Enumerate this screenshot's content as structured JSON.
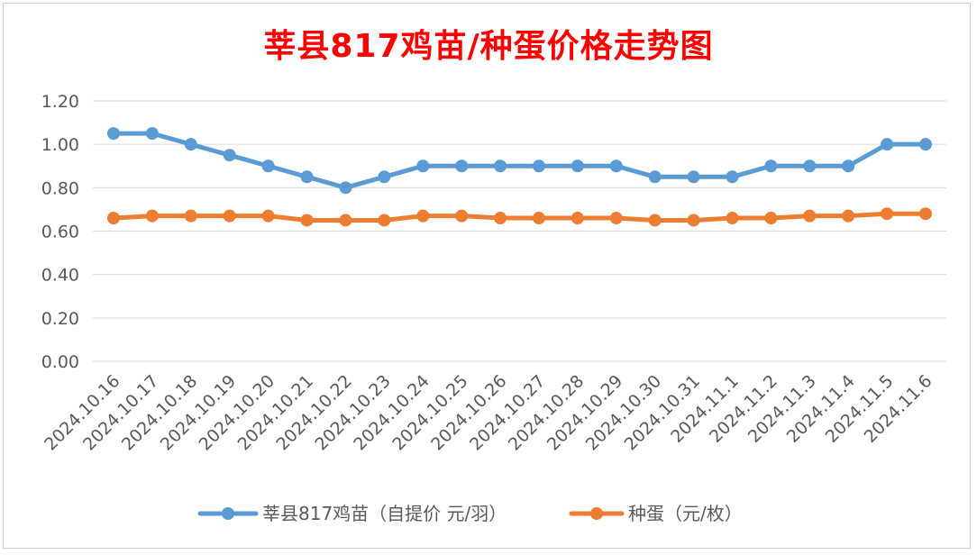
{
  "chart_data": {
    "type": "line",
    "title": "莘县817鸡苗/种蛋价格走势图",
    "title_color": "#ff0000",
    "xlabel": "",
    "ylabel": "",
    "ylim": [
      0,
      1.2
    ],
    "yticks": [
      "0.00",
      "0.20",
      "0.40",
      "0.60",
      "0.80",
      "1.00",
      "1.20"
    ],
    "grid": true,
    "legend_position": "bottom",
    "categories": [
      "2024.10.16",
      "2024.10.17",
      "2024.10.18",
      "2024.10.19",
      "2024.10.20",
      "2024.10.21",
      "2024.10.22",
      "2024.10.23",
      "2024.10.24",
      "2024.10.25",
      "2024.10.26",
      "2024.10.27",
      "2024.10.28",
      "2024.10.29",
      "2024.10.30",
      "2024.10.31",
      "2024.11.1",
      "2024.11.2",
      "2024.11.3",
      "2024.11.4",
      "2024.11.5",
      "2024.11.6"
    ],
    "series": [
      {
        "name": "莘县817鸡苗（自提价 元/羽）",
        "color": "#5b9bd5",
        "values": [
          1.05,
          1.05,
          1.0,
          0.95,
          0.9,
          0.85,
          0.8,
          0.85,
          0.9,
          0.9,
          0.9,
          0.9,
          0.9,
          0.9,
          0.85,
          0.85,
          0.85,
          0.9,
          0.9,
          0.9,
          1.0,
          1.0
        ]
      },
      {
        "name": "种蛋（元/枚）",
        "color": "#ed7d31",
        "values": [
          0.66,
          0.67,
          0.67,
          0.67,
          0.67,
          0.65,
          0.65,
          0.65,
          0.67,
          0.67,
          0.66,
          0.66,
          0.66,
          0.66,
          0.65,
          0.65,
          0.66,
          0.66,
          0.67,
          0.67,
          0.68,
          0.68
        ]
      }
    ]
  }
}
